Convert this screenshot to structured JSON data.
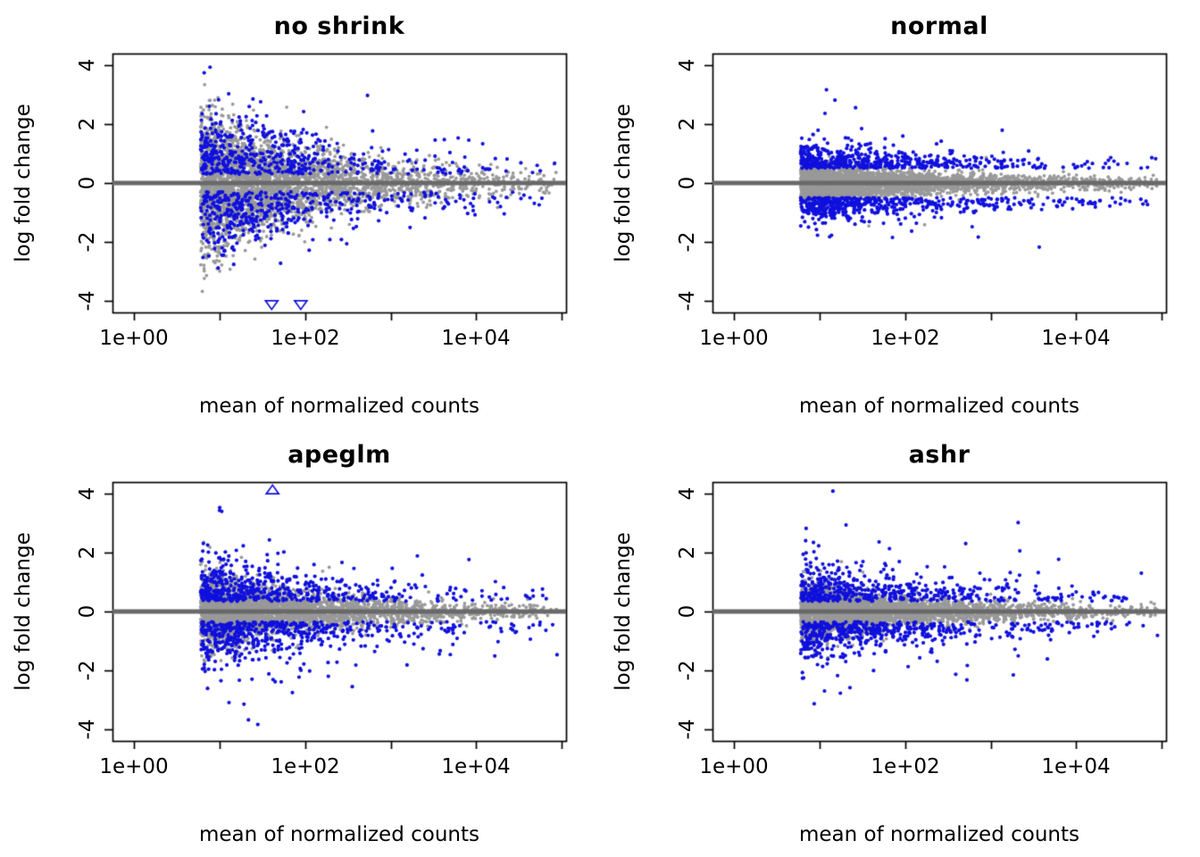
{
  "chart_data": {
    "type": "scatter",
    "layout": "2x2-grid",
    "description": "Four MA plots comparing log fold change shrinkage methods; grey points are non-significant genes, blue points are significant genes, thick grey line at log fold change 0, open blue triangles mark points beyond the y-axis limits.",
    "xlabel": "mean of normalized counts",
    "ylabel": "log fold change",
    "x_scale": "log10",
    "xlim_log10": [
      -0.25,
      5.05
    ],
    "ylim": [
      -4.4,
      4.4
    ],
    "x_tick_labels": [
      "1e+00",
      "1e+02",
      "1e+04"
    ],
    "x_tick_log10": [
      0,
      2,
      4
    ],
    "x_minor_tick_log10": [
      1,
      3,
      5
    ],
    "y_ticks": [
      -4,
      -2,
      0,
      2,
      4
    ],
    "y_tick_display": [
      "-4",
      "-2",
      "0",
      "2",
      "4"
    ],
    "grid": false,
    "legend": "none",
    "colors": {
      "nonsignificant": "#999999",
      "significant": "#1010dd",
      "zero_line": "#696969",
      "axis": "#000000"
    },
    "panels": [
      {
        "title": "no shrink",
        "seed": 11,
        "n_gray": 3400,
        "n_blue": 950,
        "x_mean_gray": 1.1,
        "x_mean_blue": 1.15,
        "gray": {
          "base": 0.18,
          "amp": 1.05,
          "decay": 0.75,
          "heavy_p": 0.01,
          "heavy_mult": 1.7
        },
        "blue": {
          "offset": 0.3,
          "base": 0.25,
          "amp": 0.9,
          "decay": 0.55,
          "out_p": 0.02,
          "out_amp": 0.8
        },
        "out_of_range_markers": [
          {
            "shape": "triangle-down",
            "log10_x": 1.61,
            "y": -4.15
          },
          {
            "shape": "triangle-down",
            "log10_x": 1.95,
            "y": -4.15
          }
        ]
      },
      {
        "title": "normal",
        "seed": 22,
        "n_gray": 3400,
        "n_blue": 1050,
        "x_mean_gray": 1.1,
        "x_mean_blue": 1.2,
        "gray": {
          "base": 0.1,
          "amp": 0.22,
          "decay": 0.6,
          "heavy_p": 0.005,
          "heavy_mult": 3.2
        },
        "blue": {
          "offset": 0.5,
          "base": 0.15,
          "amp": 0.28,
          "decay": 0.5,
          "out_p": 0.02,
          "out_amp": 0.55
        },
        "out_of_range_markers": []
      },
      {
        "title": "apeglm",
        "seed": 33,
        "n_gray": 3400,
        "n_blue": 1050,
        "x_mean_gray": 1.1,
        "x_mean_blue": 1.2,
        "gray": {
          "base": 0.11,
          "amp": 0.5,
          "decay": 0.7,
          "heavy_p": 0.012,
          "heavy_mult": 2.6
        },
        "blue": {
          "offset": 0.35,
          "base": 0.2,
          "amp": 0.5,
          "decay": 0.5,
          "out_p": 0.06,
          "out_amp": 1.0
        },
        "out_of_range_markers": [
          {
            "shape": "triangle-up",
            "log10_x": 1.62,
            "y": 4.15
          }
        ]
      },
      {
        "title": "ashr",
        "seed": 44,
        "n_gray": 3400,
        "n_blue": 1050,
        "x_mean_gray": 1.1,
        "x_mean_blue": 1.2,
        "gray": {
          "base": 0.1,
          "amp": 0.38,
          "decay": 0.7,
          "heavy_p": 0.007,
          "heavy_mult": 2.4
        },
        "blue": {
          "offset": 0.35,
          "base": 0.18,
          "amp": 0.45,
          "decay": 0.5,
          "out_p": 0.05,
          "out_amp": 0.85
        },
        "out_of_range_markers": []
      }
    ]
  }
}
